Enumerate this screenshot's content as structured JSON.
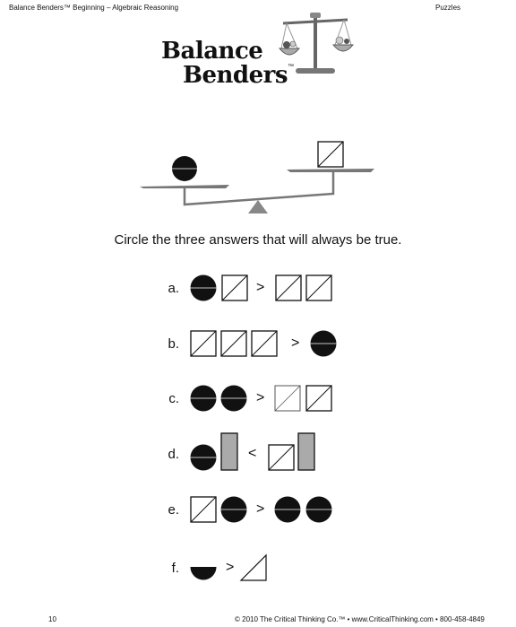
{
  "header": {
    "left": "Balance Benders™ Beginning – Algebraic Reasoning",
    "right": "Puzzles"
  },
  "logo": {
    "line1": "Balance",
    "line2": "Benders",
    "tm": "™"
  },
  "instruction": "Circle the three answers that will always be true.",
  "questions": [
    {
      "label": "a.",
      "op": ">"
    },
    {
      "label": "b.",
      "op": ">"
    },
    {
      "label": "c.",
      "op": ">"
    },
    {
      "label": "d.",
      "op": "<"
    },
    {
      "label": "e.",
      "op": ">"
    },
    {
      "label": "f.",
      "op": ">"
    }
  ],
  "footer": {
    "page": "10",
    "copyright": "© 2010 The Critical Thinking Co.™ • www.CriticalThinking.com • 800-458-4849"
  }
}
